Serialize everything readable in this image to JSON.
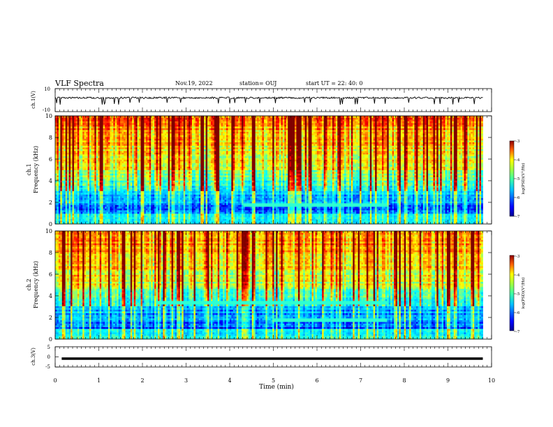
{
  "header": {
    "title": "VLF Spectra",
    "date": "Nov.19, 2022",
    "station": "station= OUJ",
    "start_ut": "start  UT  =   22: 40: 0"
  },
  "chart_data": [
    {
      "type": "line",
      "id": "ch1-waveform",
      "ylabel": "ch.1(V)",
      "ylim": [
        -10,
        10
      ],
      "yticks": [
        "10",
        "-10"
      ],
      "xlim": [
        0,
        10
      ],
      "series": [
        {
          "values_desc": "noisy trace around +2 V with short negative spikes",
          "baseline": 2,
          "spikes_to": -2
        }
      ]
    },
    {
      "type": "heatmap",
      "id": "ch1-spectrogram",
      "ylabel": "ch.1\nFrequency (kHz)",
      "ylabel_lines": [
        "ch.1",
        "Frequency  (kHz)"
      ],
      "ylim": [
        0,
        10
      ],
      "yticks": [
        "0",
        "2",
        "4",
        "6",
        "8",
        "10"
      ],
      "xlim": [
        0,
        10
      ],
      "data_end_min": 9.8,
      "features": [
        {
          "name": "narrowband band",
          "freq_khz": 1.8,
          "t_start": 4.3,
          "t_end": 7.6
        }
      ],
      "colorbar": {
        "label": "log(PSD)(V²/Hz)",
        "label_text": "log(PSD)(V",
        "label_sup": "2",
        "label_tail": "/Hz)",
        "range": [
          -7,
          -3
        ],
        "ticks": [
          "-3",
          "-4",
          "-5",
          "-6",
          "-7"
        ]
      }
    },
    {
      "type": "heatmap",
      "id": "ch2-spectrogram",
      "ylabel": "ch.2\nFrequency (kHz)",
      "ylabel_lines": [
        "ch.2",
        "Frequency  (kHz)"
      ],
      "ylim": [
        0,
        10
      ],
      "yticks": [
        "0",
        "2",
        "4",
        "6",
        "8",
        "10"
      ],
      "xlim": [
        0,
        10
      ],
      "data_end_min": 9.8,
      "features": [
        {
          "name": "narrowband band",
          "freq_khz": 3.4,
          "t_start": 2.3,
          "t_end": 7.6
        },
        {
          "name": "narrowband band",
          "freq_khz": 1.8,
          "t_start": 5.0,
          "t_end": 7.6
        }
      ],
      "colorbar": {
        "label": "log(PSD)(V²/Hz)",
        "label_text": "log(PSD)(V",
        "label_sup": "2",
        "label_tail": "/Hz)",
        "range": [
          -7,
          -3
        ],
        "ticks": [
          "-3",
          "-4",
          "-5",
          "-6",
          "-7"
        ]
      }
    },
    {
      "type": "line",
      "id": "ch3-waveform",
      "ylabel": "ch.3(V)",
      "ylim": [
        -5,
        5
      ],
      "yticks": [
        "5",
        "0",
        "-5"
      ],
      "xlim": [
        0,
        10
      ],
      "series": [
        {
          "values_desc": "flat trace",
          "level": 0
        }
      ]
    }
  ],
  "xaxis": {
    "label": "Time  (min)",
    "range": [
      0,
      10
    ],
    "ticks": [
      "0",
      "1",
      "2",
      "3",
      "4",
      "5",
      "6",
      "7",
      "8",
      "9",
      "10"
    ]
  },
  "colors": {
    "jet": [
      "#00008f",
      "#0000ff",
      "#00aaff",
      "#00ffff",
      "#80ff80",
      "#ffff00",
      "#ff8000",
      "#ff0000",
      "#800000"
    ]
  }
}
